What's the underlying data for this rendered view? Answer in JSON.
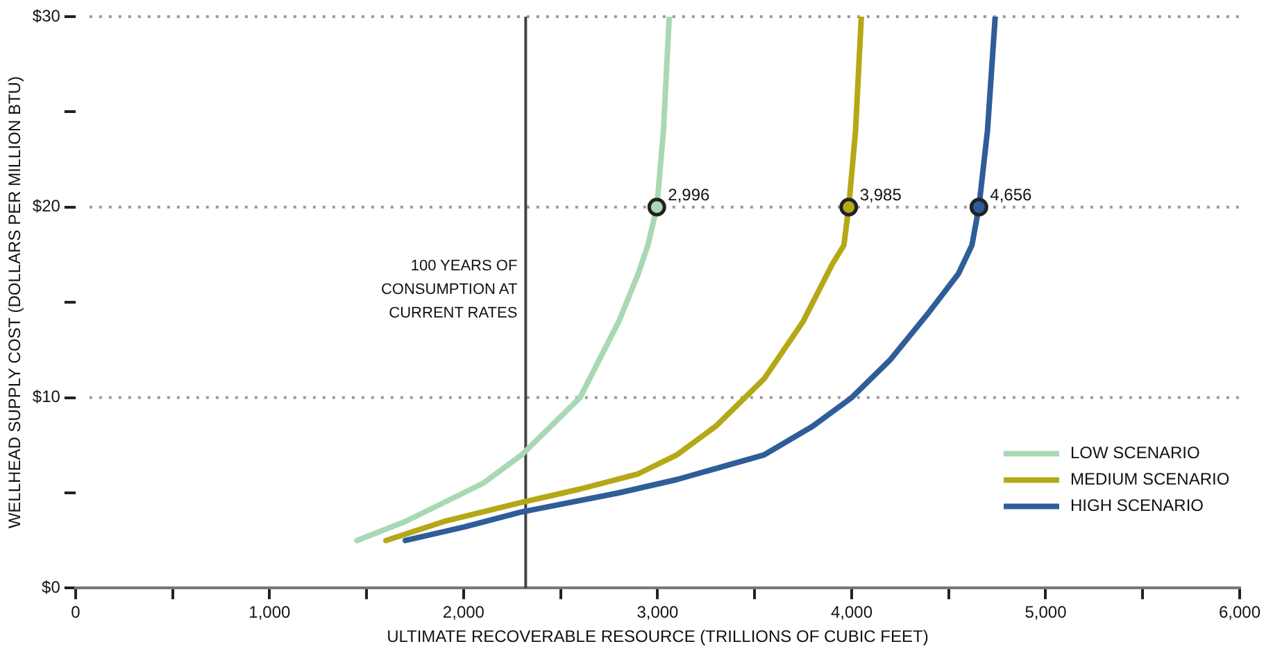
{
  "chart_data": {
    "type": "line",
    "xlabel": "ULTIMATE RECOVERABLE RESOURCE (TRILLIONS OF CUBIC FEET)",
    "ylabel": "WELLHEAD SUPPLY COST (DOLLARS PER MILLION BTU)",
    "xlim": [
      0,
      6000
    ],
    "xticks": [
      {
        "value": 0,
        "label": "0"
      },
      {
        "value": 500,
        "label": null
      },
      {
        "value": 1000,
        "label": "1,000"
      },
      {
        "value": 1500,
        "label": null
      },
      {
        "value": 2000,
        "label": "2,000"
      },
      {
        "value": 2500,
        "label": null
      },
      {
        "value": 3000,
        "label": "3,000"
      },
      {
        "value": 3500,
        "label": null
      },
      {
        "value": 4000,
        "label": "4,000"
      },
      {
        "value": 4500,
        "label": null
      },
      {
        "value": 5000,
        "label": "5,000"
      },
      {
        "value": 5500,
        "label": null
      },
      {
        "value": 6000,
        "label": "6,000"
      }
    ],
    "ylim": [
      0,
      30
    ],
    "yticks": [
      {
        "value": 0,
        "label": "$0"
      },
      {
        "value": 5,
        "label": null
      },
      {
        "value": 10,
        "label": "$10"
      },
      {
        "value": 15,
        "label": null
      },
      {
        "value": 20,
        "label": "$20"
      },
      {
        "value": 25,
        "label": null
      },
      {
        "value": 30,
        "label": "$30"
      }
    ],
    "grid": "y",
    "legend": "bottom right",
    "marker": "none",
    "line_style": "solid",
    "series": [
      {
        "name": "LOW SCENARIO",
        "color": "#a8d8b4",
        "x": [
          1450,
          1700,
          1900,
          2100,
          2300,
          2450,
          2600,
          2700,
          2800,
          2900,
          2950,
          2996,
          3030,
          3060
        ],
        "values": [
          2.5,
          3.5,
          4.5,
          5.5,
          7,
          8.5,
          10,
          12,
          14,
          16.5,
          18,
          20,
          24,
          30
        ]
      },
      {
        "name": "MEDIUM SCENARIO",
        "color": "#b5a816",
        "x": [
          1600,
          1900,
          2300,
          2600,
          2900,
          3100,
          3300,
          3550,
          3750,
          3900,
          3960,
          3985,
          4020,
          4050
        ],
        "values": [
          2.5,
          3.5,
          4.5,
          5.2,
          6,
          7,
          8.5,
          11,
          14,
          17,
          18,
          20,
          24,
          30
        ]
      },
      {
        "name": "HIGH SCENARIO",
        "color": "#2e5d99",
        "x": [
          1700,
          2000,
          2300,
          2800,
          3100,
          3550,
          3800,
          4000,
          4200,
          4400,
          4550,
          4620,
          4656,
          4700,
          4740
        ],
        "values": [
          2.5,
          3.2,
          4,
          5,
          5.7,
          7,
          8.5,
          10,
          12,
          14.5,
          16.5,
          18,
          20,
          24,
          30
        ]
      }
    ],
    "ref_lines": [
      {
        "axis": "x",
        "value": 2320,
        "label": "100 YEARS OF CONSUMPTION AT CURRENT RATES",
        "color": "#444444"
      }
    ],
    "annotations": [
      {
        "text": "2,996",
        "x": 2996,
        "y": 20
      },
      {
        "text": "3,985",
        "x": 3985,
        "y": 20
      },
      {
        "text": "4,656",
        "x": 4656,
        "y": 20
      }
    ]
  }
}
